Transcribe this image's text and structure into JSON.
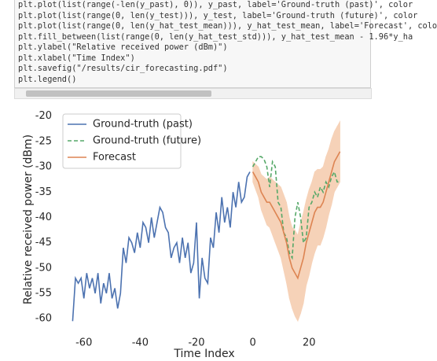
{
  "code_cell": {
    "lines": [
      "plt.plot(list(range(-len(y_past), 0)), y_past, label='Ground-truth (past)', color",
      "plt.plot(list(range(0, len(y_test))), y_test, label='Ground-truth (future)', color",
      "plt.plot(list(range(0, len(y_hat_test_mean))), y_hat_test_mean, label='Forecast', colo",
      "plt.fill_between(list(range(0, len(y_hat_test_std))), y_hat_test_mean - 1.96*y_ha",
      "plt.ylabel(\"Relative received power (dBm)\")",
      "plt.xlabel(\"Time Index\")",
      "plt.savefig(\"/results/cir_forecasting.pdf\")",
      "plt.legend()"
    ]
  },
  "chart_data": {
    "type": "line",
    "xlabel": "Time Index",
    "ylabel": "Relative received power (dBm)",
    "xlim": [
      -69.7,
      35.3
    ],
    "ylim": [
      -62,
      -18.8
    ],
    "xticks": [
      -60,
      -40,
      -20,
      0,
      20
    ],
    "yticks": [
      -20,
      -25,
      -30,
      -35,
      -40,
      -45,
      -50,
      -55,
      -60
    ],
    "legend": "upper left",
    "series": [
      {
        "name": "Ground-truth (past)",
        "color": "#4c72b0",
        "dash": false,
        "x": [
          -64,
          -63,
          -62,
          -61,
          -60,
          -59,
          -58,
          -57,
          -56,
          -55,
          -54,
          -53,
          -52,
          -51,
          -50,
          -49,
          -48,
          -47,
          -46,
          -45,
          -44,
          -43,
          -42,
          -41,
          -40,
          -39,
          -38,
          -37,
          -36,
          -35,
          -34,
          -33,
          -32,
          -31,
          -30,
          -29,
          -28,
          -27,
          -26,
          -25,
          -24,
          -23,
          -22,
          -21,
          -20,
          -19,
          -18,
          -17,
          -16,
          -15,
          -14,
          -13,
          -12,
          -11,
          -10,
          -9,
          -8,
          -7,
          -6,
          -5,
          -4,
          -3,
          -2,
          -1
        ],
        "values": [
          -60.5,
          -52,
          -53,
          -52,
          -56,
          -51,
          -54,
          -52,
          -55,
          -51,
          -57,
          -53,
          -55,
          -51,
          -56,
          -54,
          -58,
          -55,
          -46,
          -49,
          -44,
          -45,
          -47,
          -43,
          -46,
          -41,
          -42,
          -45,
          -40,
          -44,
          -41,
          -38,
          -39,
          -42,
          -43,
          -48,
          -46,
          -45,
          -49,
          -44,
          -48,
          -45,
          -51,
          -49,
          -41,
          -56,
          -48,
          -52,
          -53,
          -44,
          -46,
          -39,
          -43,
          -36,
          -41,
          -38,
          -42,
          -35,
          -38,
          -33,
          -37,
          -36,
          -32,
          -31
        ]
      },
      {
        "name": "Ground-truth (future)",
        "color": "#55a868",
        "dash": true,
        "x": [
          0,
          1,
          2,
          3,
          4,
          5,
          6,
          7,
          8,
          9,
          10,
          11,
          12,
          13,
          14,
          15,
          16,
          17,
          18,
          19,
          20,
          21,
          22,
          23,
          24,
          25,
          26,
          27,
          28,
          29,
          30,
          31
        ],
        "values": [
          -30,
          -29,
          -28,
          -28,
          -28.5,
          -30,
          -34,
          -29,
          -30,
          -37,
          -38,
          -43,
          -44,
          -47,
          -48,
          -40,
          -37,
          -40,
          -45,
          -44,
          -38,
          -37,
          -35,
          -36,
          -34,
          -35,
          -33,
          -34,
          -32,
          -31,
          -33,
          -33
        ]
      },
      {
        "name": "Forecast",
        "color": "#dd8452",
        "dash": false,
        "x": [
          0,
          1,
          2,
          3,
          4,
          5,
          6,
          7,
          8,
          9,
          10,
          11,
          12,
          13,
          14,
          15,
          16,
          17,
          18,
          19,
          20,
          21,
          22,
          23,
          24,
          25,
          26,
          27,
          28,
          29,
          30,
          31
        ],
        "values": [
          -31,
          -32,
          -33,
          -35,
          -36,
          -37,
          -37,
          -38,
          -39,
          -40,
          -41,
          -43,
          -45,
          -48,
          -50,
          -51,
          -52,
          -50,
          -48,
          -45,
          -43,
          -41,
          -39,
          -38,
          -38,
          -37,
          -35,
          -33,
          -31,
          -29,
          -28,
          -27
        ]
      }
    ],
    "band": {
      "color": "#f6d2b8",
      "x": [
        0,
        1,
        2,
        3,
        4,
        5,
        6,
        7,
        8,
        9,
        10,
        11,
        12,
        13,
        14,
        15,
        16,
        17,
        18,
        19,
        20,
        21,
        22,
        23,
        24,
        25,
        26,
        27,
        28,
        29,
        30,
        31
      ],
      "upper": [
        -29,
        -29.5,
        -30,
        -31.5,
        -32,
        -32.5,
        -32,
        -32.5,
        -33,
        -33.5,
        -34,
        -35.5,
        -37,
        -40,
        -42,
        -42.5,
        -43.5,
        -41,
        -39,
        -36.5,
        -34.5,
        -33,
        -31,
        -30.5,
        -30.5,
        -30,
        -28,
        -26.5,
        -24.5,
        -23,
        -22,
        -21
      ],
      "lower": [
        -33,
        -34.5,
        -36,
        -38.5,
        -40,
        -41.5,
        -42,
        -43.5,
        -45,
        -46.5,
        -48,
        -50.5,
        -53,
        -56,
        -58,
        -59.5,
        -60.5,
        -59,
        -57,
        -53.5,
        -51.5,
        -49,
        -47,
        -45.5,
        -45.5,
        -44,
        -42,
        -39.5,
        -37.5,
        -35,
        -34,
        -33
      ]
    }
  }
}
